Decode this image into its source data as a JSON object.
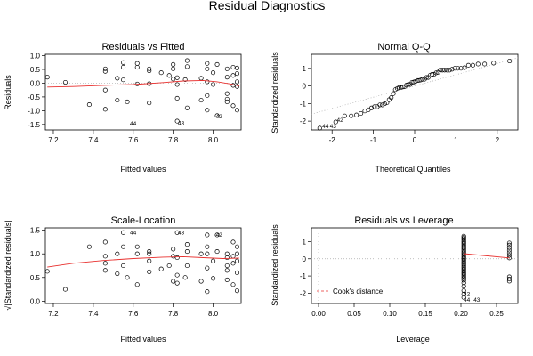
{
  "figure": {
    "title": "Residual Diagnostics"
  },
  "chart_data": [
    {
      "type": "scatter",
      "title": "Residuals vs Fitted",
      "xlabel": "Fitted values",
      "ylabel": "Residuals",
      "xlim": [
        7.16,
        8.14
      ],
      "ylim": [
        -1.7,
        1.05
      ],
      "xticks": [
        7.2,
        7.4,
        7.6,
        7.8,
        8.0
      ],
      "yticks": [
        -1.5,
        -1.0,
        -0.5,
        0.0,
        0.5,
        1.0
      ],
      "xtick_labels": [
        "7.2",
        "7.4",
        "7.6",
        "7.8",
        "8.0"
      ],
      "ytick_labels": [
        "-1.5",
        "-1.0",
        "-0.5",
        "0.0",
        "0.5",
        "1.0"
      ],
      "reference_line": 0,
      "points": [
        [
          7.17,
          0.22
        ],
        [
          7.26,
          0.03
        ],
        [
          7.38,
          -0.78
        ],
        [
          7.46,
          0.43
        ],
        [
          7.46,
          0.52
        ],
        [
          7.46,
          -0.25
        ],
        [
          7.46,
          -0.95
        ],
        [
          7.52,
          0.18
        ],
        [
          7.52,
          -0.62
        ],
        [
          7.55,
          0.58
        ],
        [
          7.55,
          0.75
        ],
        [
          7.55,
          0.12
        ],
        [
          7.57,
          -0.68
        ],
        [
          7.62,
          0.58
        ],
        [
          7.62,
          0.72
        ],
        [
          7.62,
          -0.03
        ],
        [
          7.68,
          0.52
        ],
        [
          7.68,
          0.45
        ],
        [
          7.68,
          -0.02
        ],
        [
          7.68,
          -0.72
        ],
        [
          7.74,
          0.38
        ],
        [
          7.78,
          0.28
        ],
        [
          7.8,
          0.68
        ],
        [
          7.8,
          0.52
        ],
        [
          7.8,
          0.15
        ],
        [
          7.82,
          0.2
        ],
        [
          7.82,
          -0.05
        ],
        [
          7.82,
          -0.55
        ],
        [
          7.82,
          -1.38
        ],
        [
          7.86,
          0.13
        ],
        [
          7.87,
          0.82
        ],
        [
          7.87,
          0.6
        ],
        [
          7.87,
          -0.9
        ],
        [
          7.94,
          0.18
        ],
        [
          7.94,
          -0.62
        ],
        [
          7.97,
          0.72
        ],
        [
          7.97,
          0.52
        ],
        [
          7.97,
          0.05
        ],
        [
          7.97,
          -0.45
        ],
        [
          7.97,
          -0.98
        ],
        [
          8.0,
          0.38
        ],
        [
          8.0,
          -0.05
        ],
        [
          8.02,
          0.68
        ],
        [
          8.07,
          0.52
        ],
        [
          8.07,
          0.22
        ],
        [
          8.07,
          -0.38
        ],
        [
          8.07,
          -0.58
        ],
        [
          8.07,
          -0.68
        ],
        [
          8.1,
          0.58
        ],
        [
          8.1,
          0.28
        ],
        [
          8.1,
          -0.08
        ],
        [
          8.1,
          -0.82
        ],
        [
          8.12,
          0.55
        ],
        [
          8.12,
          0.35
        ],
        [
          8.12,
          0.05
        ],
        [
          8.12,
          -0.12
        ],
        [
          8.12,
          -0.98
        ],
        [
          8.02,
          -1.18
        ]
      ],
      "smooth_line": [
        [
          7.17,
          -0.14
        ],
        [
          7.3,
          -0.12
        ],
        [
          7.45,
          -0.08
        ],
        [
          7.6,
          -0.05
        ],
        [
          7.75,
          0.02
        ],
        [
          7.85,
          0.08
        ],
        [
          7.95,
          0.1
        ],
        [
          8.02,
          0.05
        ],
        [
          8.08,
          -0.02
        ],
        [
          8.13,
          -0.1
        ]
      ],
      "point_labels": [
        {
          "text": "44",
          "x": 7.57,
          "y": -1.48
        },
        {
          "text": "43",
          "x": 7.81,
          "y": -1.45
        },
        {
          "text": "42",
          "x": 8.0,
          "y": -1.22
        }
      ]
    },
    {
      "type": "scatter",
      "title": "Normal Q-Q",
      "xlabel": "Theoretical Quantiles",
      "ylabel": "Standardized residuals",
      "xlim": [
        -2.5,
        2.5
      ],
      "ylim": [
        -2.5,
        1.8
      ],
      "xticks": [
        -2,
        -1,
        0,
        1,
        2
      ],
      "yticks": [
        -2,
        -1,
        0,
        1
      ],
      "xtick_labels": [
        "-2",
        "-1",
        "0",
        "1",
        "2"
      ],
      "ytick_labels": [
        "-2",
        "-1",
        "0",
        "1"
      ],
      "reference_line_points": [
        [
          -2.5,
          -1.6
        ],
        [
          2.5,
          1.6
        ]
      ],
      "point_labels": [
        {
          "text": "42",
          "x": -1.95,
          "y": -1.95
        },
        {
          "text": "44",
          "x": -2.3,
          "y": -2.3
        },
        {
          "text": "43",
          "x": -2.12,
          "y": -2.3
        }
      ]
    },
    {
      "type": "scatter",
      "title": "Scale-Location",
      "xlabel": "Fitted values",
      "ylabel": "√|Standardized residuals|",
      "xlim": [
        7.16,
        8.14
      ],
      "ylim": [
        -0.05,
        1.55
      ],
      "xticks": [
        7.2,
        7.4,
        7.6,
        7.8,
        8.0
      ],
      "yticks": [
        0.0,
        0.5,
        1.0,
        1.5
      ],
      "xtick_labels": [
        "7.2",
        "7.4",
        "7.6",
        "7.8",
        "8.0"
      ],
      "ytick_labels": [
        "0.0",
        "0.5",
        "1.0",
        "1.5"
      ],
      "points": [
        [
          7.17,
          0.63
        ],
        [
          7.26,
          0.25
        ],
        [
          7.38,
          1.15
        ],
        [
          7.46,
          1.25
        ],
        [
          7.46,
          0.95
        ],
        [
          7.46,
          0.8
        ],
        [
          7.46,
          0.65
        ],
        [
          7.52,
          1.0
        ],
        [
          7.52,
          0.58
        ],
        [
          7.55,
          1.45
        ],
        [
          7.55,
          1.15
        ],
        [
          7.55,
          0.75
        ],
        [
          7.57,
          0.5
        ],
        [
          7.62,
          1.15
        ],
        [
          7.62,
          1.0
        ],
        [
          7.62,
          0.35
        ],
        [
          7.68,
          1.05
        ],
        [
          7.68,
          1.0
        ],
        [
          7.68,
          0.62
        ],
        [
          7.68,
          0.85
        ],
        [
          7.74,
          0.68
        ],
        [
          7.78,
          0.75
        ],
        [
          7.8,
          1.1
        ],
        [
          7.8,
          0.95
        ],
        [
          7.8,
          0.42
        ],
        [
          7.82,
          0.55
        ],
        [
          7.82,
          0.38
        ],
        [
          7.82,
          0.92
        ],
        [
          7.82,
          1.45
        ],
        [
          7.86,
          0.5
        ],
        [
          7.87,
          1.2
        ],
        [
          7.87,
          1.05
        ],
        [
          7.87,
          0.75
        ],
        [
          7.94,
          0.42
        ],
        [
          7.94,
          1.0
        ],
        [
          7.97,
          1.15
        ],
        [
          7.97,
          1.0
        ],
        [
          7.97,
          0.2
        ],
        [
          7.97,
          0.7
        ],
        [
          7.97,
          1.4
        ],
        [
          8.0,
          0.85
        ],
        [
          8.0,
          0.48
        ],
        [
          8.02,
          1.05
        ],
        [
          8.07,
          1.0
        ],
        [
          8.07,
          0.75
        ],
        [
          8.07,
          0.65
        ],
        [
          8.07,
          0.45
        ],
        [
          8.07,
          0.92
        ],
        [
          8.1,
          1.25
        ],
        [
          8.1,
          0.8
        ],
        [
          8.1,
          0.35
        ],
        [
          8.1,
          0.95
        ],
        [
          8.12,
          1.0
        ],
        [
          8.12,
          0.85
        ],
        [
          8.12,
          0.22
        ],
        [
          8.12,
          0.6
        ],
        [
          8.12,
          1.15
        ],
        [
          8.02,
          1.4
        ]
      ],
      "smooth_line": [
        [
          7.17,
          0.72
        ],
        [
          7.3,
          0.8
        ],
        [
          7.45,
          0.86
        ],
        [
          7.6,
          0.9
        ],
        [
          7.75,
          0.93
        ],
        [
          7.85,
          0.94
        ],
        [
          7.95,
          0.92
        ],
        [
          8.05,
          0.9
        ],
        [
          8.13,
          0.91
        ]
      ],
      "point_labels": [
        {
          "text": "44",
          "x": 7.57,
          "y": 1.45
        },
        {
          "text": "43",
          "x": 7.81,
          "y": 1.45
        },
        {
          "text": "42",
          "x": 8.0,
          "y": 1.4
        }
      ]
    },
    {
      "type": "scatter",
      "title": "Residuals vs Leverage",
      "xlabel": "Leverage",
      "ylabel": "Standardized residuals",
      "xlim": [
        -0.01,
        0.28
      ],
      "ylim": [
        -2.6,
        1.8
      ],
      "xticks": [
        0.0,
        0.05,
        0.1,
        0.15,
        0.2,
        0.25
      ],
      "yticks": [
        -2,
        -1,
        0,
        1
      ],
      "xtick_labels": [
        "0.00",
        "0.05",
        "0.10",
        "0.15",
        "0.20",
        "0.25"
      ],
      "ytick_labels": [
        "-2",
        "-1",
        "0",
        "1"
      ],
      "reference_line": 0,
      "leverage_groups": [
        {
          "x": 0.204,
          "values": [
            1.32,
            1.25,
            1.18,
            1.1,
            1.02,
            0.95,
            0.88,
            0.8,
            0.72,
            0.65,
            0.58,
            0.5,
            0.42,
            0.35,
            0.28,
            0.2,
            0.12,
            0.05,
            -0.02,
            -0.1,
            -0.18,
            -0.25,
            -0.32,
            -0.4,
            -0.48,
            -0.55,
            -0.62,
            -0.7,
            -0.78,
            -0.85,
            -0.92,
            -1.0,
            -1.08,
            -1.15,
            -1.25,
            -1.4,
            -1.6,
            -1.85,
            -2.05,
            -2.25
          ]
        },
        {
          "x": 0.268,
          "values": [
            0.92,
            0.8,
            0.65,
            0.5,
            0.35,
            0.2,
            0.05,
            -1.05,
            -1.18,
            -1.3
          ]
        }
      ],
      "smooth_line": [
        [
          0.204,
          0.3
        ],
        [
          0.268,
          0.05
        ]
      ],
      "legend": {
        "label": "Cook's distance",
        "placement": "bottom-left"
      },
      "point_labels": [
        {
          "text": "42",
          "x": 0.2,
          "y": -2.05
        },
        {
          "text": "44",
          "x": 0.2,
          "y": -2.4
        },
        {
          "text": "43",
          "x": 0.214,
          "y": -2.4
        }
      ]
    }
  ]
}
